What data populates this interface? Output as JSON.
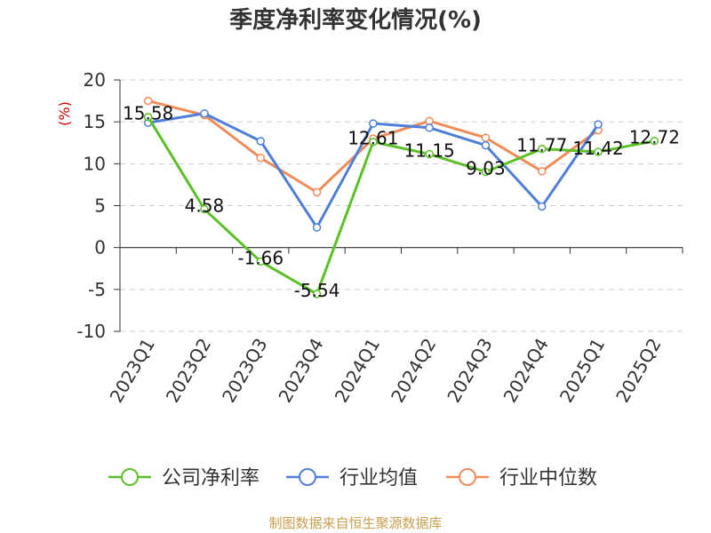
{
  "chart_data": {
    "type": "line",
    "title": "季度净利率变化情况(%)",
    "ylabel": "(%)",
    "xlabel": "",
    "categories": [
      "2023Q1",
      "2023Q2",
      "2023Q3",
      "2023Q4",
      "2024Q1",
      "2024Q2",
      "2024Q3",
      "2024Q4",
      "2025Q1",
      "2025Q2"
    ],
    "ylim": [
      -10,
      20
    ],
    "yticks": [
      20,
      15,
      10,
      5,
      0,
      -5,
      -10
    ],
    "grid": true,
    "legend_position": "bottom",
    "series": [
      {
        "name": "公司净利率",
        "color": "#5cc128",
        "values": [
          15.58,
          4.58,
          -1.66,
          -5.54,
          12.61,
          11.15,
          9.03,
          11.77,
          11.42,
          12.72
        ],
        "labels": [
          "15.58",
          "4.58",
          "-1.66",
          "-5.54",
          "12.61",
          "11.15",
          "9.03",
          "11.77",
          "11.42",
          "12.72"
        ]
      },
      {
        "name": "行业均值",
        "color": "#4f7fd9",
        "values": [
          14.9,
          16.0,
          12.7,
          2.4,
          14.8,
          14.3,
          12.2,
          4.9,
          14.7,
          null
        ]
      },
      {
        "name": "行业中位数",
        "color": "#f08c5a",
        "values": [
          17.5,
          15.8,
          10.7,
          6.6,
          13.0,
          15.1,
          13.1,
          9.1,
          14.0,
          null
        ]
      }
    ]
  },
  "footer": {
    "source": "制图数据来自恒生聚源数据库"
  }
}
